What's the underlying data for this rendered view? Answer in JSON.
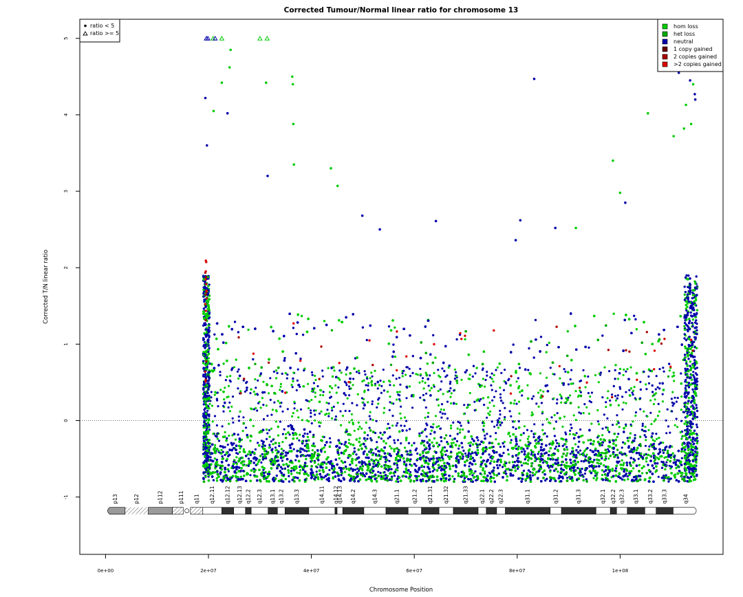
{
  "chart_data": {
    "type": "scatter",
    "title": "Corrected Tumour/Normal linear ratio for chromosome  13",
    "xlabel": "Chromosome Position",
    "ylabel": "Corrected T/N linear ratio",
    "xlim": [
      -5000000,
      120000000
    ],
    "ylim": [
      -1.75,
      5.25
    ],
    "xticks": [
      0,
      20000000,
      40000000,
      60000000,
      80000000,
      100000000
    ],
    "xtick_labels": [
      "0e+00",
      "2e+07",
      "4e+07",
      "6e+07",
      "8e+07",
      "1e+08"
    ],
    "yticks": [
      -1,
      0,
      1,
      2,
      3,
      4,
      5
    ],
    "ytick_labels": [
      "-1",
      "0",
      "1",
      "2",
      "3",
      "4",
      "5"
    ],
    "reference_line": {
      "y": 0,
      "style": "dotted"
    },
    "data_range": {
      "x_start": 19000000,
      "x_end": 115000000,
      "y_min": -0.8,
      "typical_upper": 0.8
    },
    "colors": {
      "hom_loss": "#00cc00",
      "het_loss": "#00aa00",
      "neutral": "#0000aa",
      "copy1": "#660000",
      "copy2": "#aa0000",
      "copy3": "#dd0000"
    },
    "shape_legend": {
      "position": "top-left",
      "items": [
        {
          "symbol": "●",
          "label": "ratio < 5"
        },
        {
          "symbol": "△",
          "label": "ratio >= 5"
        }
      ]
    },
    "color_legend": {
      "position": "top-right",
      "items": [
        {
          "label": "hom loss",
          "color": "#00cc00"
        },
        {
          "label": "het loss",
          "color": "#00aa00"
        },
        {
          "label": "neutral",
          "color": "#0000aa"
        },
        {
          "label": "1 copy gained",
          "color": "#660000"
        },
        {
          "label": "2 copies gained",
          "color": "#aa0000"
        },
        {
          "label": ">2 copies gained",
          "color": "#dd0000"
        }
      ]
    },
    "outliers": [
      {
        "x": 19400000,
        "y": 4.22,
        "s": "neutral"
      },
      {
        "x": 19700000,
        "y": 3.6,
        "s": "neutral"
      },
      {
        "x": 21000000,
        "y": 4.05,
        "s": "hom_loss"
      },
      {
        "x": 22600000,
        "y": 4.42,
        "s": "hom_loss"
      },
      {
        "x": 23700000,
        "y": 4.02,
        "s": "neutral"
      },
      {
        "x": 24300000,
        "y": 4.85,
        "s": "hom_loss"
      },
      {
        "x": 24100000,
        "y": 4.62,
        "s": "hom_loss"
      },
      {
        "x": 31200000,
        "y": 4.42,
        "s": "hom_loss"
      },
      {
        "x": 36300000,
        "y": 4.5,
        "s": "hom_loss"
      },
      {
        "x": 36400000,
        "y": 4.4,
        "s": "hom_loss"
      },
      {
        "x": 36500000,
        "y": 3.88,
        "s": "hom_loss"
      },
      {
        "x": 36600000,
        "y": 3.35,
        "s": "hom_loss"
      },
      {
        "x": 43800000,
        "y": 3.3,
        "s": "hom_loss"
      },
      {
        "x": 45100000,
        "y": 3.07,
        "s": "hom_loss"
      },
      {
        "x": 31500000,
        "y": 3.2,
        "s": "neutral"
      },
      {
        "x": 83300000,
        "y": 4.47,
        "s": "neutral"
      },
      {
        "x": 80600000,
        "y": 2.62,
        "s": "neutral"
      },
      {
        "x": 98600000,
        "y": 3.4,
        "s": "hom_loss"
      },
      {
        "x": 100000000,
        "y": 2.98,
        "s": "hom_loss"
      },
      {
        "x": 101000000,
        "y": 2.85,
        "s": "neutral"
      },
      {
        "x": 105400000,
        "y": 4.02,
        "s": "hom_loss"
      },
      {
        "x": 111400000,
        "y": 4.55,
        "s": "neutral"
      },
      {
        "x": 112800000,
        "y": 4.13,
        "s": "hom_loss"
      },
      {
        "x": 113600000,
        "y": 4.45,
        "s": "neutral"
      },
      {
        "x": 114200000,
        "y": 4.4,
        "s": "hom_loss"
      },
      {
        "x": 114500000,
        "y": 4.27,
        "s": "neutral"
      },
      {
        "x": 114600000,
        "y": 4.2,
        "s": "neutral"
      },
      {
        "x": 112400000,
        "y": 3.82,
        "s": "hom_loss"
      },
      {
        "x": 113800000,
        "y": 3.88,
        "s": "hom_loss"
      },
      {
        "x": 110400000,
        "y": 3.72,
        "s": "hom_loss"
      },
      {
        "x": 64200000,
        "y": 2.61,
        "s": "neutral"
      },
      {
        "x": 53300000,
        "y": 2.5,
        "s": "neutral"
      },
      {
        "x": 49900000,
        "y": 2.68,
        "s": "neutral"
      },
      {
        "x": 87400000,
        "y": 2.52,
        "s": "neutral"
      },
      {
        "x": 91400000,
        "y": 2.52,
        "s": "hom_loss"
      },
      {
        "x": 79700000,
        "y": 2.36,
        "s": "neutral"
      }
    ],
    "capped_points": [
      {
        "x": 19600000,
        "s": "neutral"
      },
      {
        "x": 19900000,
        "s": "neutral"
      },
      {
        "x": 20900000,
        "s": "hom_loss"
      },
      {
        "x": 21300000,
        "s": "neutral"
      },
      {
        "x": 22600000,
        "s": "hom_loss"
      },
      {
        "x": 30000000,
        "s": "hom_loss"
      },
      {
        "x": 31400000,
        "s": "hom_loss"
      },
      {
        "x": 110600000,
        "s": "hom_loss"
      },
      {
        "x": 112100000,
        "s": "hom_loss"
      },
      {
        "x": 113400000,
        "s": "neutral"
      },
      {
        "x": 114300000,
        "s": "neutral"
      },
      {
        "x": 114600000,
        "s": "neutral"
      }
    ],
    "ideogram": {
      "y": -1.18,
      "bands": [
        {
          "name": "p13",
          "start": 0,
          "end": 3800000,
          "type": "stalk_end"
        },
        {
          "name": "p12",
          "start": 3800000,
          "end": 8300000,
          "type": "stalk"
        },
        {
          "name": "p112",
          "start": 8300000,
          "end": 13000000,
          "type": "acen_grey"
        },
        {
          "name": "p111",
          "start": 13000000,
          "end": 16500000,
          "type": "cen"
        },
        {
          "name": "q11",
          "start": 16500000,
          "end": 18900000,
          "type": "hatched"
        },
        {
          "name": "q12.11",
          "start": 18900000,
          "end": 22600000,
          "type": "white"
        },
        {
          "name": "q12.12",
          "start": 22600000,
          "end": 24900000,
          "type": "black"
        },
        {
          "name": "q12.13",
          "start": 24900000,
          "end": 27200000,
          "type": "white"
        },
        {
          "name": "q12.2",
          "start": 27200000,
          "end": 28300000,
          "type": "black"
        },
        {
          "name": "q12.3",
          "start": 28300000,
          "end": 31600000,
          "type": "white"
        },
        {
          "name": "q13.1",
          "start": 31600000,
          "end": 33400000,
          "type": "black"
        },
        {
          "name": "q13.2",
          "start": 33400000,
          "end": 34900000,
          "type": "white"
        },
        {
          "name": "q13.3",
          "start": 34900000,
          "end": 39500000,
          "type": "black"
        },
        {
          "name": "q14.11",
          "start": 39500000,
          "end": 44600000,
          "type": "white"
        },
        {
          "name": "q14.12",
          "start": 44600000,
          "end": 45000000,
          "type": "black"
        },
        {
          "name": "q14.13",
          "start": 45000000,
          "end": 46100000,
          "type": "white"
        },
        {
          "name": "q14.2",
          "start": 46100000,
          "end": 50200000,
          "type": "black"
        },
        {
          "name": "q14.3",
          "start": 50200000,
          "end": 54500000,
          "type": "white"
        },
        {
          "name": "q21.1",
          "start": 54500000,
          "end": 58800000,
          "type": "black"
        },
        {
          "name": "q21.2",
          "start": 58800000,
          "end": 61400000,
          "type": "white"
        },
        {
          "name": "q21.31",
          "start": 61400000,
          "end": 64800000,
          "type": "black"
        },
        {
          "name": "q21.32",
          "start": 64800000,
          "end": 67600000,
          "type": "white"
        },
        {
          "name": "q21.33",
          "start": 67600000,
          "end": 72400000,
          "type": "black"
        },
        {
          "name": "q22.1",
          "start": 72400000,
          "end": 74000000,
          "type": "white"
        },
        {
          "name": "q22.2",
          "start": 74000000,
          "end": 76000000,
          "type": "black"
        },
        {
          "name": "q22.3",
          "start": 76000000,
          "end": 77700000,
          "type": "white"
        },
        {
          "name": "q31.1",
          "start": 77700000,
          "end": 86400000,
          "type": "black"
        },
        {
          "name": "q31.2",
          "start": 86400000,
          "end": 88600000,
          "type": "white"
        },
        {
          "name": "q31.3",
          "start": 88600000,
          "end": 95300000,
          "type": "black"
        },
        {
          "name": "q32.1",
          "start": 95300000,
          "end": 98100000,
          "type": "white"
        },
        {
          "name": "q32.2",
          "start": 98100000,
          "end": 99300000,
          "type": "black"
        },
        {
          "name": "q32.3",
          "start": 99300000,
          "end": 101400000,
          "type": "white"
        },
        {
          "name": "q33.1",
          "start": 101400000,
          "end": 104800000,
          "type": "black"
        },
        {
          "name": "q33.2",
          "start": 104800000,
          "end": 107000000,
          "type": "white"
        },
        {
          "name": "q33.3",
          "start": 107000000,
          "end": 110300000,
          "type": "black"
        },
        {
          "name": "q34",
          "start": 110300000,
          "end": 115200000,
          "type": "white_end"
        }
      ]
    }
  },
  "labels": {
    "band_names": [
      "p13",
      "p12",
      "p112",
      "p111",
      "q11",
      "q12.11",
      "q12.12",
      "q12.13",
      "q12.2",
      "q12.3",
      "q13.1",
      "q13.2",
      "q13.3",
      "q14.11",
      "q14.12",
      "q14.13",
      "q14.2",
      "q14.3",
      "q21.1",
      "q21.2",
      "q21.31",
      "q21.32",
      "q21.33",
      "q22.1",
      "q22.2",
      "q22.3",
      "q31.1",
      "q31.2",
      "q31.3",
      "q32.1",
      "q32.2",
      "q32.3",
      "q33.1",
      "q33.2",
      "q33.3",
      "q34"
    ]
  }
}
